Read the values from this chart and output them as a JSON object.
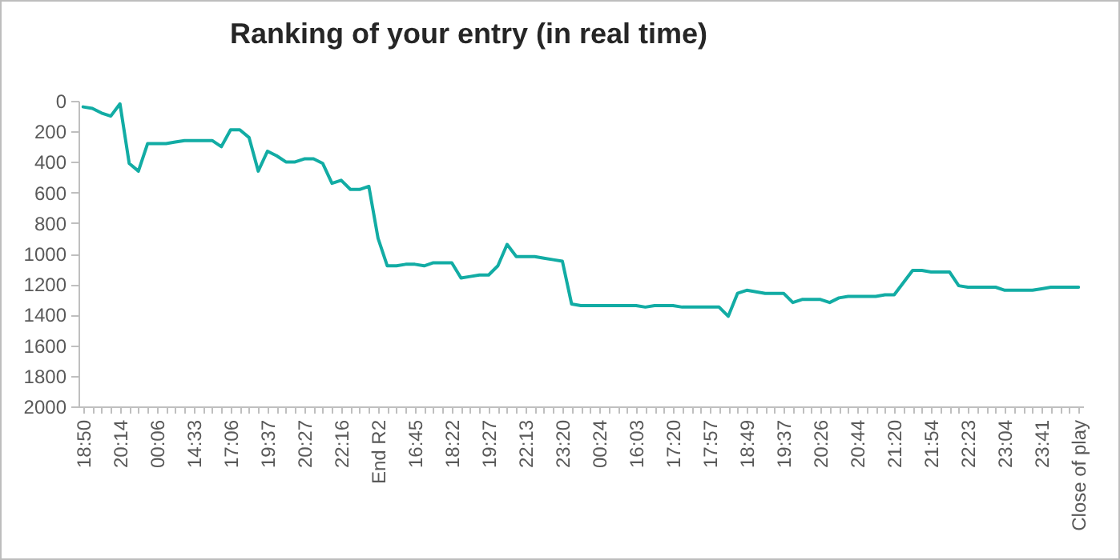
{
  "chart_data": {
    "type": "line",
    "title": "Ranking of your entry (in real time)",
    "categories": [
      "18:50",
      null,
      null,
      null,
      "20:14",
      null,
      null,
      null,
      "00:06",
      null,
      null,
      null,
      "14:33",
      null,
      null,
      null,
      "17:06",
      null,
      null,
      null,
      "19:37",
      null,
      null,
      null,
      "20:27",
      null,
      null,
      null,
      "22:16",
      null,
      null,
      null,
      "End R2",
      null,
      null,
      null,
      "16:45",
      null,
      null,
      null,
      "18:22",
      null,
      null,
      null,
      "19:27",
      null,
      null,
      null,
      "22:13",
      null,
      null,
      null,
      "23:20",
      null,
      null,
      null,
      "00:24",
      null,
      null,
      null,
      "16:03",
      null,
      null,
      null,
      "17:20",
      null,
      null,
      null,
      "17:57",
      null,
      null,
      null,
      "18:49",
      null,
      null,
      null,
      "19:37",
      null,
      null,
      null,
      "20:26",
      null,
      null,
      null,
      "20:44",
      null,
      null,
      null,
      "21:20",
      null,
      null,
      null,
      "21:54",
      null,
      null,
      null,
      "22:23",
      null,
      null,
      null,
      "23:04",
      null,
      null,
      null,
      "23:41",
      null,
      null,
      null,
      "Close of play"
    ],
    "series": [
      {
        "color": "#12aca4",
        "values": [
          40,
          50,
          80,
          100,
          20,
          410,
          460,
          280,
          280,
          280,
          270,
          260,
          260,
          260,
          260,
          300,
          190,
          190,
          240,
          460,
          330,
          360,
          400,
          400,
          380,
          380,
          410,
          540,
          520,
          580,
          580,
          560,
          900,
          1080,
          1080,
          1070,
          1070,
          1080,
          1060,
          1060,
          1060,
          1160,
          1150,
          1140,
          1140,
          1080,
          940,
          1020,
          1020,
          1020,
          1030,
          1040,
          1050,
          1330,
          1340,
          1340,
          1340,
          1340,
          1340,
          1340,
          1340,
          1350,
          1340,
          1340,
          1340,
          1350,
          1350,
          1350,
          1350,
          1350,
          1410,
          1260,
          1240,
          1250,
          1260,
          1260,
          1260,
          1320,
          1300,
          1300,
          1300,
          1320,
          1290,
          1280,
          1280,
          1280,
          1280,
          1270,
          1270,
          1190,
          1110,
          1110,
          1120,
          1120,
          1120,
          1210,
          1220,
          1220,
          1220,
          1220,
          1240,
          1240,
          1240,
          1240,
          1230,
          1220,
          1220,
          1220,
          1220
        ]
      }
    ],
    "ylim": [
      2000,
      0
    ],
    "yticks": [
      0,
      200,
      400,
      600,
      800,
      1000,
      1200,
      1400,
      1600,
      1800,
      2000
    ],
    "grid": false,
    "marker": "none",
    "line_style": "solid"
  }
}
